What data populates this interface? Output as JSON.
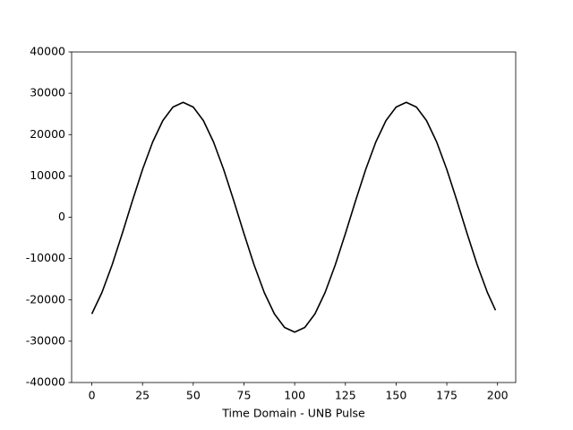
{
  "chart_data": {
    "type": "line",
    "xlabel": "Time Domain - UNB Pulse",
    "x": [
      0,
      5,
      10,
      15,
      20,
      25,
      30,
      35,
      40,
      45,
      50,
      55,
      60,
      65,
      70,
      75,
      80,
      85,
      90,
      95,
      100,
      105,
      110,
      115,
      120,
      125,
      130,
      135,
      140,
      145,
      150,
      155,
      160,
      165,
      170,
      175,
      180,
      185,
      190,
      195,
      199
    ],
    "series": [
      {
        "color": "#000000",
        "values": [
          -23390,
          -18210,
          -11550,
          -3960,
          3960,
          11550,
          18210,
          23390,
          26670,
          27800,
          26670,
          23390,
          18210,
          11550,
          3960,
          -3960,
          -11550,
          -18210,
          -23390,
          -26670,
          -27800,
          -26670,
          -23390,
          -18210,
          -11550,
          -3960,
          3960,
          11550,
          18210,
          23390,
          26670,
          27800,
          26670,
          23390,
          18210,
          11550,
          3960,
          -3960,
          -11550,
          -18210,
          -22500
        ]
      }
    ],
    "xlim": [
      -9.95,
      208.95
    ],
    "xticks": [
      0,
      25,
      50,
      75,
      100,
      125,
      150,
      175,
      200
    ],
    "ylim": [
      -40000,
      40000
    ],
    "yticks": [
      -40000,
      -30000,
      -20000,
      -10000,
      0,
      10000,
      20000,
      30000,
      40000
    ],
    "grid": false
  }
}
